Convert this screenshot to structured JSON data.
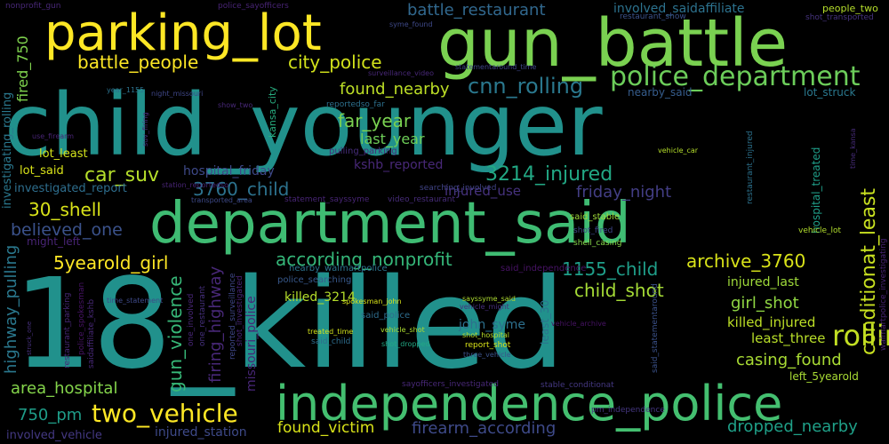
{
  "background": "#000000",
  "words": [
    {
      "text": "child_younger",
      "color": "#21918c"
    },
    {
      "text": "18_killed",
      "color": "#21918c"
    },
    {
      "text": "gun_battle",
      "color": "#7ad151"
    },
    {
      "text": "department_said",
      "color": "#3fbc73"
    },
    {
      "text": "parking_lot",
      "color": "#fde725"
    },
    {
      "text": "independence_police",
      "color": "#44bf70"
    },
    {
      "text": "police_department",
      "color": "#6ccd5a"
    },
    {
      "text": "two_vehicle",
      "color": "#fde725"
    },
    {
      "text": "rolling_gun",
      "color": "#c2df23"
    },
    {
      "text": "battle_people",
      "color": "#fde725"
    },
    {
      "text": "city_police",
      "color": "#d2e21b"
    },
    {
      "text": "battle_restaurant",
      "color": "#31688e"
    },
    {
      "text": "found_nearby",
      "color": "#bddf26"
    },
    {
      "text": "cnn_rolling",
      "color": "#2a788e"
    },
    {
      "text": "far_year",
      "color": "#7ad151"
    },
    {
      "text": "last_year",
      "color": "#6ece58"
    },
    {
      "text": "kshb_reported",
      "color": "#482878"
    },
    {
      "text": "car_suv",
      "color": "#b5de2b"
    },
    {
      "text": "3214_injured",
      "color": "#22a884"
    },
    {
      "text": "3760_child",
      "color": "#2c728e"
    },
    {
      "text": "friday_night",
      "color": "#433e85"
    },
    {
      "text": "injured_use",
      "color": "#46327e"
    },
    {
      "text": "30_shell",
      "color": "#d8e219"
    },
    {
      "text": "believed_one",
      "color": "#3b528b"
    },
    {
      "text": "according_nonprofit",
      "color": "#35b779"
    },
    {
      "text": "5yearold_girl",
      "color": "#fde725"
    },
    {
      "text": "archive_3760",
      "color": "#d8e219"
    },
    {
      "text": "1155_child",
      "color": "#1f9e89"
    },
    {
      "text": "child_shot",
      "color": "#a5db36"
    },
    {
      "text": "conditionat_least",
      "color": "#c8e020"
    },
    {
      "text": "girl_shot",
      "color": "#90d743"
    },
    {
      "text": "killed_injured",
      "color": "#bddf26"
    },
    {
      "text": "least_three",
      "color": "#b8de29"
    },
    {
      "text": "casing_found",
      "color": "#a8db34"
    },
    {
      "text": "area_hospital",
      "color": "#84d44b"
    },
    {
      "text": "750_pm",
      "color": "#1f9e89"
    },
    {
      "text": "found_victim",
      "color": "#d8e219"
    },
    {
      "text": "firearm_according",
      "color": "#3e4a89"
    },
    {
      "text": "dropped_nearby",
      "color": "#1fa088"
    },
    {
      "text": "gun_violence",
      "color": "#37b878"
    },
    {
      "text": "firing_highway",
      "color": "#482878"
    },
    {
      "text": "highway_pulling",
      "color": "#2a788e"
    },
    {
      "text": "missouri_police",
      "color": "#482677"
    },
    {
      "text": "injured_station",
      "color": "#3e4a89"
    },
    {
      "text": "involved_vehicle",
      "color": "#443983"
    },
    {
      "text": "hospital_friday",
      "color": "#3e4989"
    },
    {
      "text": "investigated_report",
      "color": "#2e6e8e"
    },
    {
      "text": "lot_said",
      "color": "#d8e219"
    },
    {
      "text": "lot_least",
      "color": "#d2e21b"
    },
    {
      "text": "might_left",
      "color": "#482475"
    },
    {
      "text": "fired_750",
      "color": "#7fd34e"
    },
    {
      "text": "investigating_rolling",
      "color": "#2a788e"
    },
    {
      "text": "nonprofit_gun",
      "color": "#482878"
    },
    {
      "text": "police_sayofficers",
      "color": "#482475"
    },
    {
      "text": "involved_saidaffiliate",
      "color": "#2c728e"
    },
    {
      "text": "people_two",
      "color": "#b5de2b"
    },
    {
      "text": "shot_transported",
      "color": "#46337e"
    },
    {
      "text": "restaurant_show",
      "color": "#3b528b"
    },
    {
      "text": "nearby_said",
      "color": "#365d8d"
    },
    {
      "text": "lot_struck",
      "color": "#2a788e"
    },
    {
      "text": "kansa_city",
      "color": "#28ae80"
    },
    {
      "text": "surveillance_video",
      "color": "#482878"
    },
    {
      "text": "statementaround_time",
      "color": "#3f4788"
    },
    {
      "text": "reportedso_far",
      "color": "#2d708e"
    },
    {
      "text": "pulling_parking",
      "color": "#472d7b"
    },
    {
      "text": "searching_involved",
      "color": "#414487"
    },
    {
      "text": "video_restaurant",
      "color": "#472c7a"
    },
    {
      "text": "statement_sayssyme",
      "color": "#482576"
    },
    {
      "text": "said_stable",
      "color": "#a0da39"
    },
    {
      "text": "shot_fired",
      "color": "#3f4788"
    },
    {
      "text": "shell_casing",
      "color": "#86d549"
    },
    {
      "text": "said_independence",
      "color": "#471365"
    },
    {
      "text": "spokesman_john",
      "color": "#d8e219"
    },
    {
      "text": "sayssyme_said",
      "color": "#addc30"
    },
    {
      "text": "killed_3214",
      "color": "#b5de2b"
    },
    {
      "text": "police_searching",
      "color": "#38598c"
    },
    {
      "text": "nearby_walmartpolice",
      "color": "#2c728e"
    },
    {
      "text": "john_syme",
      "color": "#2d708e"
    },
    {
      "text": "said_police",
      "color": "#2e6d8e"
    },
    {
      "text": "vehicle_might",
      "color": "#472f7d"
    },
    {
      "text": "treated_time",
      "color": "#d2e21b"
    },
    {
      "text": "vehicle_shot",
      "color": "#addc30"
    },
    {
      "text": "shot_hospital",
      "color": "#b8de29"
    },
    {
      "text": "report_shot",
      "color": "#d8e219"
    },
    {
      "text": "said_child",
      "color": "#2e6d8e"
    },
    {
      "text": "shot_dropped",
      "color": "#22a884"
    },
    {
      "text": "three_vehicle",
      "color": "#3b528b"
    },
    {
      "text": "least_30",
      "color": "#2c728e"
    },
    {
      "text": "vehicle_archive",
      "color": "#471365"
    },
    {
      "text": "said_statementaround",
      "color": "#3b528b"
    },
    {
      "text": "stable_conditionat",
      "color": "#453882"
    },
    {
      "text": "sayofficers_investigated",
      "color": "#482878"
    },
    {
      "text": "pm_independence",
      "color": "#453781"
    },
    {
      "text": "left_5yearold",
      "color": "#a8db34"
    },
    {
      "text": "injured_last",
      "color": "#9fda3a"
    },
    {
      "text": "hospital_treated",
      "color": "#1f9e89"
    },
    {
      "text": "time_kansa",
      "color": "#472c7a"
    },
    {
      "text": "restaurant_injured",
      "color": "#2c728e"
    },
    {
      "text": "vehicle_lot",
      "color": "#b2dd2d"
    },
    {
      "text": "vehicle_car",
      "color": "#b5de2b"
    },
    {
      "text": "walmartpolice_investigating",
      "color": "#482475"
    },
    {
      "text": "one_involved",
      "color": "#482677"
    },
    {
      "text": "one_restaurant",
      "color": "#46307e"
    },
    {
      "text": "reported_surveillance",
      "color": "#3f4788"
    },
    {
      "text": "shot_investigated",
      "color": "#482475"
    },
    {
      "text": "police_spokesman",
      "color": "#471365"
    },
    {
      "text": "restaurant_parking",
      "color": "#482878"
    },
    {
      "text": "saidaffiliate_kshb",
      "color": "#482878"
    },
    {
      "text": "struck_one",
      "color": "#46307e"
    },
    {
      "text": "time_statement",
      "color": "#3e4a89"
    },
    {
      "text": "use_firearm",
      "color": "#482475"
    },
    {
      "text": "syme_found",
      "color": "#3e4989"
    },
    {
      "text": "year_1155",
      "color": "#2c728e"
    },
    {
      "text": "night_missouri",
      "color": "#3f4788"
    },
    {
      "text": "show_two",
      "color": "#482878"
    },
    {
      "text": "suv_firing",
      "color": "#472d7b"
    },
    {
      "text": "station_reportedso",
      "color": "#482475"
    },
    {
      "text": "transported_area",
      "color": "#3e4a89"
    }
  ]
}
